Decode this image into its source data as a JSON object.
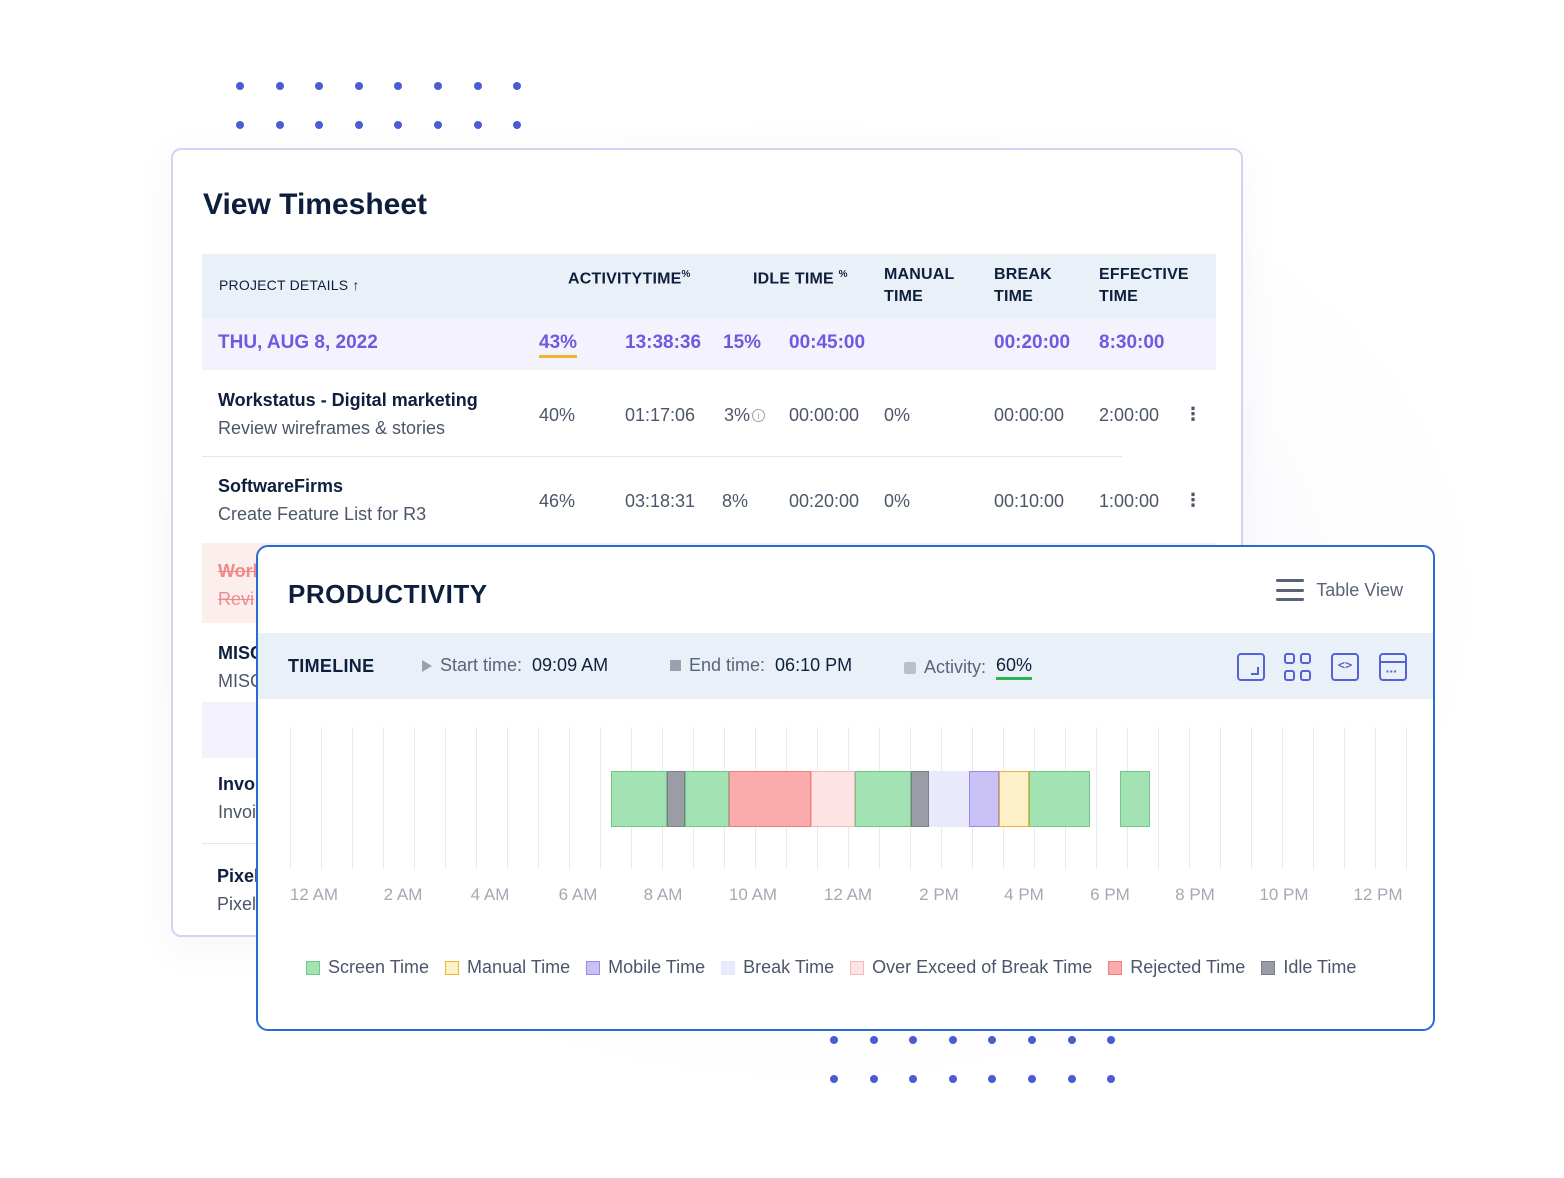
{
  "timesheet": {
    "title": "View Timesheet",
    "headers": {
      "project": "PROJECT DETAILS ↑",
      "activity": "ACTIVITY",
      "time": "TIME",
      "activity_pct": "%",
      "idle": "IDLE TIME",
      "idle_pct": "%",
      "manual1": "MANUAL",
      "manual2": "TIME",
      "break1": "BREAK",
      "break2": "TIME",
      "effective1": "EFFECTIVE",
      "effective2": "TIME"
    },
    "day": {
      "date": "THU, AUG 8, 2022",
      "activity": "43%",
      "time": "13:38:36",
      "idle_pct": "15%",
      "idle_time": "00:45:00",
      "break": "00:20:00",
      "effective": "8:30:00"
    },
    "rows": [
      {
        "name": "Workstatus - Digital marketing",
        "task": "Review wireframes & stories",
        "activity": "40%",
        "time": "01:17:06",
        "idle_pct": "3%",
        "idle_time": "00:00:00",
        "manual": "0%",
        "break": "00:00:00",
        "effective": "2:00:00",
        "more": "⋮"
      },
      {
        "name": "SoftwareFirms",
        "task": "Create Feature List for R3",
        "activity": "46%",
        "time": "03:18:31",
        "idle_pct": "8%",
        "idle_time": "00:20:00",
        "manual": "0%",
        "break": "00:10:00",
        "effective": "1:00:00",
        "more": "⋮"
      },
      {
        "name": "Worl",
        "task": "Revi"
      },
      {
        "name": "MISC",
        "task": "MISC"
      },
      {
        "name": "Invo",
        "task": "Invoi"
      },
      {
        "name": "Pixel",
        "task": "Pixel"
      }
    ]
  },
  "productivity": {
    "title": "PRODUCTIVITY",
    "table_view": "Table View",
    "timeline": {
      "label": "TIMELINE",
      "start_label": "Start time:",
      "start_value": "09:09 AM",
      "end_label": "End time:",
      "end_value": "06:10 PM",
      "activity_label": "Activity:",
      "activity_value": "60%"
    },
    "tools": [
      "fullscreen-icon",
      "grid-icon",
      "code-icon",
      "calendar-icon"
    ],
    "ticks": [
      "12 AM",
      "2 AM",
      "4 AM",
      "6 AM",
      "8 AM",
      "10 AM",
      "12 AM",
      "2 PM",
      "4 PM",
      "6 PM",
      "8 PM",
      "10 PM",
      "12 PM"
    ],
    "segments": [
      {
        "type": "screen",
        "start": 6.9,
        "end": 8.1
      },
      {
        "type": "idle",
        "start": 8.1,
        "end": 8.5
      },
      {
        "type": "screen",
        "start": 8.5,
        "end": 9.45
      },
      {
        "type": "rejected",
        "start": 9.45,
        "end": 11.2
      },
      {
        "type": "over_break",
        "start": 11.2,
        "end": 12.15
      },
      {
        "type": "screen",
        "start": 12.15,
        "end": 13.35
      },
      {
        "type": "idle",
        "start": 13.35,
        "end": 13.75
      },
      {
        "type": "break",
        "start": 13.75,
        "end": 14.6
      },
      {
        "type": "mobile",
        "start": 14.6,
        "end": 15.25
      },
      {
        "type": "manual",
        "start": 15.25,
        "end": 15.9
      },
      {
        "type": "screen",
        "start": 15.9,
        "end": 17.2
      },
      {
        "type": "screen",
        "start": 17.85,
        "end": 18.5
      }
    ],
    "legend": [
      {
        "key": "screen",
        "label": "Screen Time",
        "fill": "#a3e2b2",
        "stroke": "#6fc785"
      },
      {
        "key": "manual",
        "label": "Manual Time",
        "fill": "#fdefc8",
        "stroke": "#f0b429"
      },
      {
        "key": "mobile",
        "label": "Mobile Time",
        "fill": "#c9c0f5",
        "stroke": "#9b8ae6"
      },
      {
        "key": "break",
        "label": "Break Time",
        "fill": "#e8e9fb",
        "stroke": "#e8e9fb"
      },
      {
        "key": "over_break",
        "label": "Over Exceed of Break Time",
        "fill": "#fde3e3",
        "stroke": "#f5b7b7"
      },
      {
        "key": "rejected",
        "label": "Rejected Time",
        "fill": "#fbabab",
        "stroke": "#ef7d7d"
      },
      {
        "key": "idle",
        "label": "Idle Time",
        "fill": "#9a9ca6",
        "stroke": "#7d7f88"
      }
    ]
  }
}
